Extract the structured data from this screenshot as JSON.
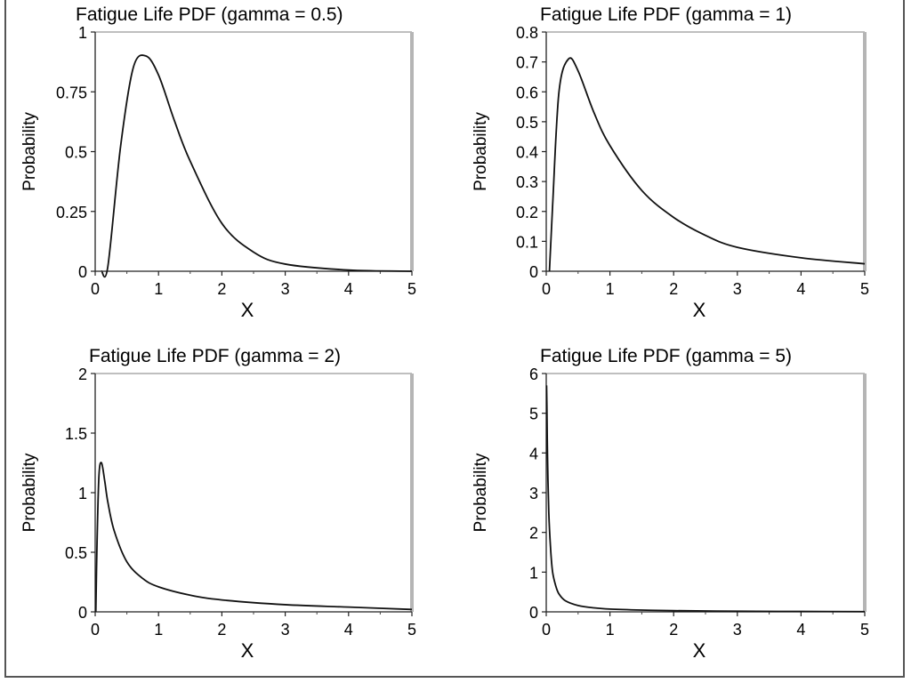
{
  "figure": {
    "ylabel": "Probability",
    "xlabel": "X"
  },
  "chart_data": [
    {
      "type": "line",
      "title": "Fatigue Life PDF (gamma = 0.5)",
      "gamma": 0.5,
      "xlabel": "X",
      "ylabel": "Probability",
      "xlim": [
        0,
        5
      ],
      "ylim": [
        0,
        1
      ],
      "xticks": [
        "0",
        "1",
        "2",
        "3",
        "4",
        "5"
      ],
      "yticks": [
        "0",
        "0.25",
        "0.5",
        "0.75",
        "1"
      ],
      "series": [
        {
          "x": [
            0.1,
            0.2,
            0.4,
            0.6,
            0.8,
            1.0,
            1.25,
            1.5,
            2.0,
            2.5,
            3.0,
            4.0,
            5.0
          ],
          "values": [
            0.0,
            0.02,
            0.52,
            0.85,
            0.9,
            0.82,
            0.63,
            0.46,
            0.2,
            0.08,
            0.03,
            0.005,
            0.0
          ]
        }
      ]
    },
    {
      "type": "line",
      "title": "Fatigue Life PDF (gamma = 1)",
      "gamma": 1,
      "xlabel": "X",
      "ylabel": "Probability",
      "xlim": [
        0,
        5
      ],
      "ylim": [
        0,
        0.8
      ],
      "xticks": [
        "0",
        "1",
        "2",
        "3",
        "4",
        "5"
      ],
      "yticks": [
        "0",
        "0.1",
        "0.2",
        "0.3",
        "0.4",
        "0.5",
        "0.6",
        "0.7",
        "0.8"
      ],
      "series": [
        {
          "x": [
            0.05,
            0.1,
            0.2,
            0.35,
            0.5,
            0.75,
            1.0,
            1.5,
            2.0,
            2.5,
            3.0,
            4.0,
            5.0
          ],
          "values": [
            0.0,
            0.22,
            0.6,
            0.71,
            0.67,
            0.53,
            0.42,
            0.27,
            0.18,
            0.12,
            0.08,
            0.045,
            0.025
          ]
        }
      ]
    },
    {
      "type": "line",
      "title": "Fatigue Life PDF (gamma = 2)",
      "gamma": 2,
      "xlabel": "X",
      "ylabel": "Probability",
      "xlim": [
        0,
        5
      ],
      "ylim": [
        0,
        2
      ],
      "xticks": [
        "0",
        "1",
        "2",
        "3",
        "4",
        "5"
      ],
      "yticks": [
        "0",
        "0.5",
        "1",
        "1.5",
        "2"
      ],
      "series": [
        {
          "x": [
            0.01,
            0.03,
            0.06,
            0.1,
            0.15,
            0.2,
            0.3,
            0.5,
            0.75,
            1.0,
            1.5,
            2.0,
            3.0,
            4.0,
            5.0
          ],
          "values": [
            0.0,
            0.6,
            1.15,
            1.25,
            1.1,
            0.92,
            0.68,
            0.42,
            0.28,
            0.21,
            0.14,
            0.1,
            0.06,
            0.04,
            0.02
          ]
        }
      ]
    },
    {
      "type": "line",
      "title": "Fatigue Life PDF (gamma = 5)",
      "gamma": 5,
      "xlabel": "X",
      "ylabel": "Probability",
      "xlim": [
        0,
        5
      ],
      "ylim": [
        0,
        6
      ],
      "xticks": [
        "0",
        "1",
        "2",
        "3",
        "4",
        "5"
      ],
      "yticks": [
        "0",
        "1",
        "2",
        "3",
        "4",
        "5",
        "6"
      ],
      "series": [
        {
          "x": [
            0.005,
            0.01,
            0.02,
            0.04,
            0.07,
            0.1,
            0.15,
            0.2,
            0.3,
            0.5,
            0.75,
            1.0,
            1.5,
            2.0,
            3.0,
            4.0,
            5.0
          ],
          "values": [
            5.7,
            5.2,
            3.9,
            2.5,
            1.55,
            1.0,
            0.65,
            0.45,
            0.28,
            0.16,
            0.1,
            0.07,
            0.045,
            0.03,
            0.015,
            0.01,
            0.005
          ]
        }
      ]
    }
  ]
}
